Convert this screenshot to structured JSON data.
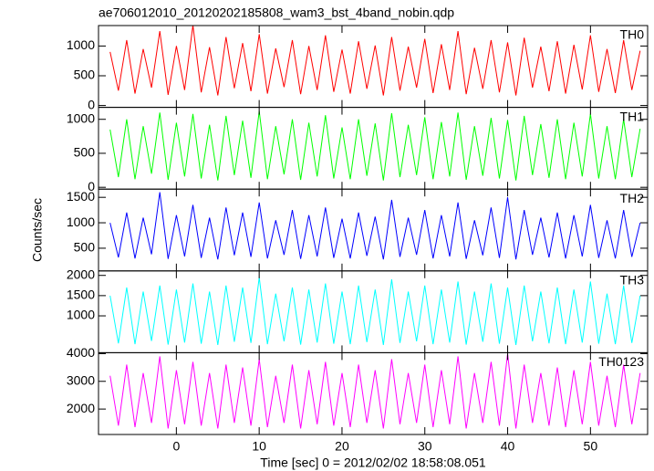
{
  "chart_data": [
    {
      "type": "line",
      "title": "ae706012010_20120202185808_wam3_bst_4band_nobin.qdp",
      "x": [
        -8,
        -7,
        -6,
        -5,
        -4,
        -3,
        -2,
        -1,
        0,
        1,
        2,
        3,
        4,
        5,
        6,
        7,
        8,
        9,
        10,
        11,
        12,
        13,
        14,
        15,
        16,
        17,
        18,
        19,
        20,
        21,
        22,
        23,
        24,
        25,
        26,
        27,
        28,
        29,
        30,
        31,
        32,
        33,
        34,
        35,
        36,
        37,
        38,
        39,
        40,
        41,
        42,
        43,
        44,
        45,
        46,
        47,
        48,
        49,
        50,
        51,
        52,
        53,
        54,
        55,
        56
      ],
      "series": [
        {
          "name": "TH0",
          "color": "#ff0000",
          "values": [
            900,
            250,
            1100,
            200,
            950,
            300,
            1250,
            180,
            1000,
            260,
            1350,
            220,
            980,
            170,
            1150,
            290,
            1050,
            240,
            1200,
            200,
            960,
            310,
            1100,
            190,
            1000,
            260,
            1180,
            230,
            940,
            200,
            1080,
            280,
            1010,
            170,
            1150,
            250,
            990,
            300,
            1120,
            210,
            1030,
            260,
            1250,
            190,
            970,
            280,
            1100,
            220,
            1060,
            170,
            1140,
            300,
            990,
            240,
            1080,
            200,
            1020,
            270,
            1180,
            230,
            950,
            210,
            1100,
            260,
            920
          ]
        }
      ],
      "xlim": [
        -9.4,
        56.9
      ],
      "ylim": [
        -31,
        1344
      ],
      "yticks": [
        0,
        500,
        1000
      ]
    },
    {
      "type": "line",
      "x": [
        -8,
        -7,
        -6,
        -5,
        -4,
        -3,
        -2,
        -1,
        0,
        1,
        2,
        3,
        4,
        5,
        6,
        7,
        8,
        9,
        10,
        11,
        12,
        13,
        14,
        15,
        16,
        17,
        18,
        19,
        20,
        21,
        22,
        23,
        24,
        25,
        26,
        27,
        28,
        29,
        30,
        31,
        32,
        33,
        34,
        35,
        36,
        37,
        38,
        39,
        40,
        41,
        42,
        43,
        44,
        45,
        46,
        47,
        48,
        49,
        50,
        51,
        52,
        53,
        54,
        55,
        56
      ],
      "series": [
        {
          "name": "TH1",
          "color": "#00ff00",
          "values": [
            850,
            150,
            1000,
            120,
            900,
            200,
            1100,
            110,
            950,
            160,
            1080,
            130,
            920,
            100,
            1050,
            180,
            980,
            140,
            1120,
            120,
            900,
            190,
            1000,
            110,
            950,
            160,
            1060,
            130,
            880,
            120,
            1000,
            170,
            940,
            100,
            1090,
            150,
            920,
            180,
            1030,
            120,
            960,
            160,
            1100,
            110,
            900,
            170,
            1020,
            130,
            990,
            100,
            1050,
            180,
            930,
            140,
            1000,
            120,
            950,
            160,
            1080,
            130,
            900,
            120,
            1000,
            150,
            860
          ]
        }
      ],
      "xlim": [
        -9.4,
        56.9
      ],
      "ylim": [
        -27,
        1176
      ],
      "yticks": [
        0,
        500,
        1000
      ]
    },
    {
      "type": "line",
      "y_label": "Counts/sec",
      "x": [
        -8,
        -7,
        -6,
        -5,
        -4,
        -3,
        -2,
        -1,
        0,
        1,
        2,
        3,
        4,
        5,
        6,
        7,
        8,
        9,
        10,
        11,
        12,
        13,
        14,
        15,
        16,
        17,
        18,
        19,
        20,
        21,
        22,
        23,
        24,
        25,
        26,
        27,
        28,
        29,
        30,
        31,
        32,
        33,
        34,
        35,
        36,
        37,
        38,
        39,
        40,
        41,
        42,
        43,
        44,
        45,
        46,
        47,
        48,
        49,
        50,
        51,
        52,
        53,
        54,
        55,
        56
      ],
      "series": [
        {
          "name": "TH2",
          "color": "#0000ff",
          "values": [
            1000,
            320,
            1200,
            300,
            1100,
            380,
            1600,
            290,
            1150,
            340,
            1350,
            310,
            1100,
            280,
            1300,
            360,
            1200,
            330,
            1400,
            300,
            1050,
            370,
            1250,
            290,
            1150,
            340,
            1300,
            310,
            1080,
            300,
            1200,
            350,
            1120,
            280,
            1450,
            330,
            1100,
            370,
            1250,
            300,
            1150,
            340,
            1400,
            290,
            1050,
            360,
            1300,
            310,
            1500,
            280,
            1250,
            370,
            1100,
            320,
            1200,
            300,
            1150,
            340,
            1350,
            310,
            1050,
            300,
            1250,
            330,
            1000
          ]
        }
      ],
      "xlim": [
        -9.4,
        56.9
      ],
      "ylim": [
        54,
        1661
      ],
      "yticks": [
        500,
        1000,
        1500
      ]
    },
    {
      "type": "line",
      "x": [
        -8,
        -7,
        -6,
        -5,
        -4,
        -3,
        -2,
        -1,
        0,
        1,
        2,
        3,
        4,
        5,
        6,
        7,
        8,
        9,
        10,
        11,
        12,
        13,
        14,
        15,
        16,
        17,
        18,
        19,
        20,
        21,
        22,
        23,
        24,
        25,
        26,
        27,
        28,
        29,
        30,
        31,
        32,
        33,
        34,
        35,
        36,
        37,
        38,
        39,
        40,
        41,
        42,
        43,
        44,
        45,
        46,
        47,
        48,
        49,
        50,
        51,
        52,
        53,
        54,
        55,
        56
      ],
      "series": [
        {
          "name": "TH3",
          "color": "#00ffff",
          "values": [
            1500,
            320,
            1700,
            300,
            1600,
            380,
            1750,
            290,
            1650,
            340,
            1800,
            310,
            1600,
            280,
            1750,
            360,
            1700,
            330,
            1950,
            300,
            1550,
            370,
            1700,
            290,
            1650,
            340,
            1800,
            310,
            1600,
            300,
            1750,
            350,
            1650,
            280,
            1900,
            330,
            1600,
            370,
            1750,
            300,
            1650,
            340,
            1850,
            290,
            1600,
            360,
            1800,
            310,
            1700,
            280,
            1750,
            370,
            1600,
            320,
            1700,
            300,
            1650,
            340,
            1850,
            310,
            1550,
            300,
            1750,
            330,
            1500
          ]
        }
      ],
      "xlim": [
        -9.4,
        56.9
      ],
      "ylim": [
        89,
        2111
      ],
      "yticks": [
        1000,
        1500,
        2000
      ]
    },
    {
      "type": "line",
      "x_label": "Time [sec] 0 = 2012/02/02 18:58:08.051",
      "x": [
        -8,
        -7,
        -6,
        -5,
        -4,
        -3,
        -2,
        -1,
        0,
        1,
        2,
        3,
        4,
        5,
        6,
        7,
        8,
        9,
        10,
        11,
        12,
        13,
        14,
        15,
        16,
        17,
        18,
        19,
        20,
        21,
        22,
        23,
        24,
        25,
        26,
        27,
        28,
        29,
        30,
        31,
        32,
        33,
        34,
        35,
        36,
        37,
        38,
        39,
        40,
        41,
        42,
        43,
        44,
        45,
        46,
        47,
        48,
        49,
        50,
        51,
        52,
        53,
        54,
        55,
        56
      ],
      "series": [
        {
          "name": "TH0123",
          "color": "#ff00ff",
          "values": [
            3200,
            1400,
            3600,
            1350,
            3300,
            1500,
            3900,
            1300,
            3400,
            1450,
            3700,
            1400,
            3300,
            1300,
            3600,
            1500,
            3500,
            1400,
            3800,
            1350,
            3200,
            1500,
            3600,
            1300,
            3400,
            1450,
            3700,
            1400,
            3300,
            1350,
            3600,
            1500,
            3400,
            1300,
            3800,
            1450,
            3300,
            1500,
            3600,
            1350,
            3400,
            1450,
            3900,
            1300,
            3300,
            1500,
            3700,
            1400,
            4000,
            1300,
            3600,
            1500,
            3300,
            1400,
            3500,
            1350,
            3400,
            1450,
            3700,
            1400,
            3200,
            1350,
            3600,
            1450,
            3300
          ]
        }
      ],
      "xlim": [
        -9.4,
        56.9
      ],
      "ylim": [
        1082,
        4033
      ],
      "yticks": [
        2000,
        3000,
        4000
      ],
      "xticks": [
        0,
        10,
        20,
        30,
        40,
        50
      ]
    }
  ]
}
